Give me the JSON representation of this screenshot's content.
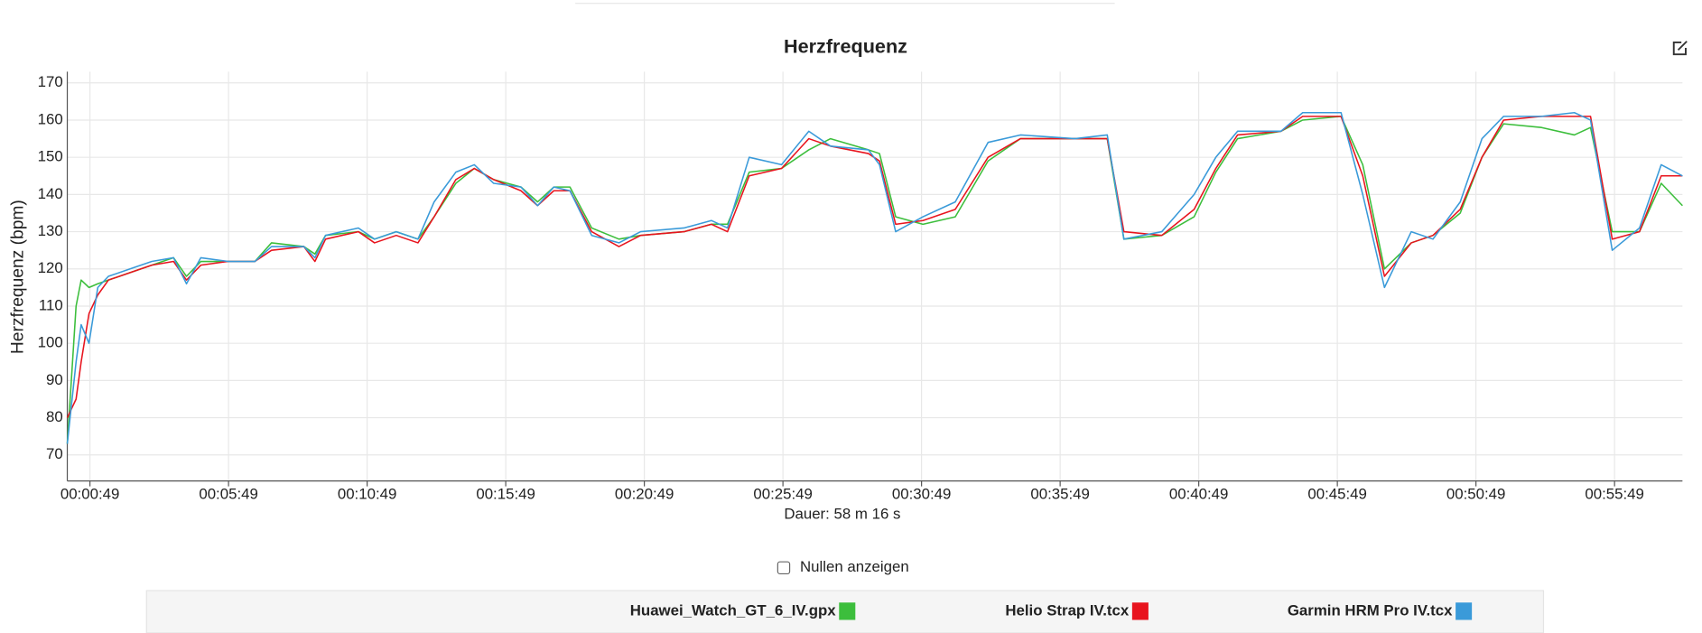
{
  "chart_data": {
    "type": "line",
    "title": "Herzfrequenz",
    "y_label": "Herzfrequenz (bpm)",
    "x_label": "Dauer: 58 m 16 s",
    "grid": true,
    "legend": "bottom",
    "xlim": [
      0,
      3496
    ],
    "xticks": [
      {
        "value": 49,
        "label": "00:00:49"
      },
      {
        "value": 349,
        "label": "00:05:49"
      },
      {
        "value": 649,
        "label": "00:10:49"
      },
      {
        "value": 949,
        "label": "00:15:49"
      },
      {
        "value": 1249,
        "label": "00:20:49"
      },
      {
        "value": 1549,
        "label": "00:25:49"
      },
      {
        "value": 1849,
        "label": "00:30:49"
      },
      {
        "value": 2149,
        "label": "00:35:49"
      },
      {
        "value": 2449,
        "label": "00:40:49"
      },
      {
        "value": 2749,
        "label": "00:45:49"
      },
      {
        "value": 3049,
        "label": "00:50:49"
      },
      {
        "value": 3349,
        "label": "00:55:49"
      }
    ],
    "ylim": [
      63,
      173
    ],
    "yticks": [
      70,
      80,
      90,
      100,
      110,
      120,
      130,
      140,
      150,
      160,
      170
    ],
    "x": [
      0,
      19,
      30,
      47,
      66,
      89,
      136,
      183,
      230,
      258,
      289,
      348,
      406,
      442,
      512,
      536,
      559,
      630,
      665,
      712,
      759,
      794,
      841,
      881,
      923,
      982,
      1018,
      1053,
      1088,
      1135,
      1194,
      1241,
      1335,
      1394,
      1429,
      1476,
      1546,
      1605,
      1652,
      1734,
      1758,
      1793,
      1852,
      1922,
      1993,
      2063,
      2181,
      2251,
      2287,
      2369,
      2439,
      2486,
      2533,
      2627,
      2674,
      2757,
      2804,
      2851,
      2909,
      2956,
      3015,
      3062,
      3109,
      3191,
      3262,
      3297,
      3344,
      3403,
      3450,
      3496
    ],
    "series": [
      {
        "name": "Huawei_Watch_GT_6_IV.gpx",
        "color": "#3cbe3c",
        "values": [
          73,
          110,
          117,
          115,
          116,
          117,
          119,
          121,
          123,
          118,
          122,
          122,
          122,
          127,
          126,
          124,
          129,
          130,
          128,
          130,
          128,
          134,
          143,
          147,
          144,
          142,
          138,
          142,
          142,
          131,
          128,
          129,
          130,
          132,
          132,
          146,
          147,
          152,
          155,
          152,
          151,
          134,
          132,
          134,
          149,
          155,
          155,
          155,
          128,
          129,
          134,
          146,
          155,
          157,
          160,
          161,
          148,
          120,
          127,
          129,
          135,
          150,
          159,
          158,
          156,
          158,
          130,
          130,
          143,
          137
        ]
      },
      {
        "name": "Helio Strap IV.tcx",
        "color": "#e8141e",
        "values": [
          80,
          85,
          95,
          108,
          113,
          117,
          119,
          121,
          122,
          117,
          121,
          122,
          122,
          125,
          126,
          122,
          128,
          130,
          127,
          129,
          127,
          134,
          144,
          147,
          144,
          141,
          137,
          141,
          141,
          130,
          126,
          129,
          130,
          132,
          130,
          145,
          147,
          155,
          153,
          151,
          149,
          132,
          133,
          136,
          150,
          155,
          155,
          155,
          130,
          129,
          136,
          147,
          156,
          157,
          161,
          161,
          145,
          118,
          127,
          129,
          136,
          150,
          160,
          161,
          161,
          161,
          128,
          130,
          145,
          145
        ]
      },
      {
        "name": "Garmin HRM Pro IV.tcx",
        "color": "#3a9ad9",
        "values": [
          73,
          95,
          105,
          100,
          115,
          118,
          120,
          122,
          123,
          116,
          123,
          122,
          122,
          126,
          126,
          123,
          129,
          131,
          128,
          130,
          128,
          138,
          146,
          148,
          143,
          142,
          137,
          142,
          141,
          129,
          127,
          130,
          131,
          133,
          131,
          150,
          148,
          157,
          153,
          152,
          148,
          130,
          134,
          138,
          154,
          156,
          155,
          156,
          128,
          130,
          140,
          150,
          157,
          157,
          162,
          162,
          140,
          115,
          130,
          128,
          138,
          155,
          161,
          161,
          162,
          160,
          125,
          131,
          148,
          145
        ]
      }
    ]
  },
  "controls": {
    "show_zeros": "Nullen anzeigen"
  }
}
